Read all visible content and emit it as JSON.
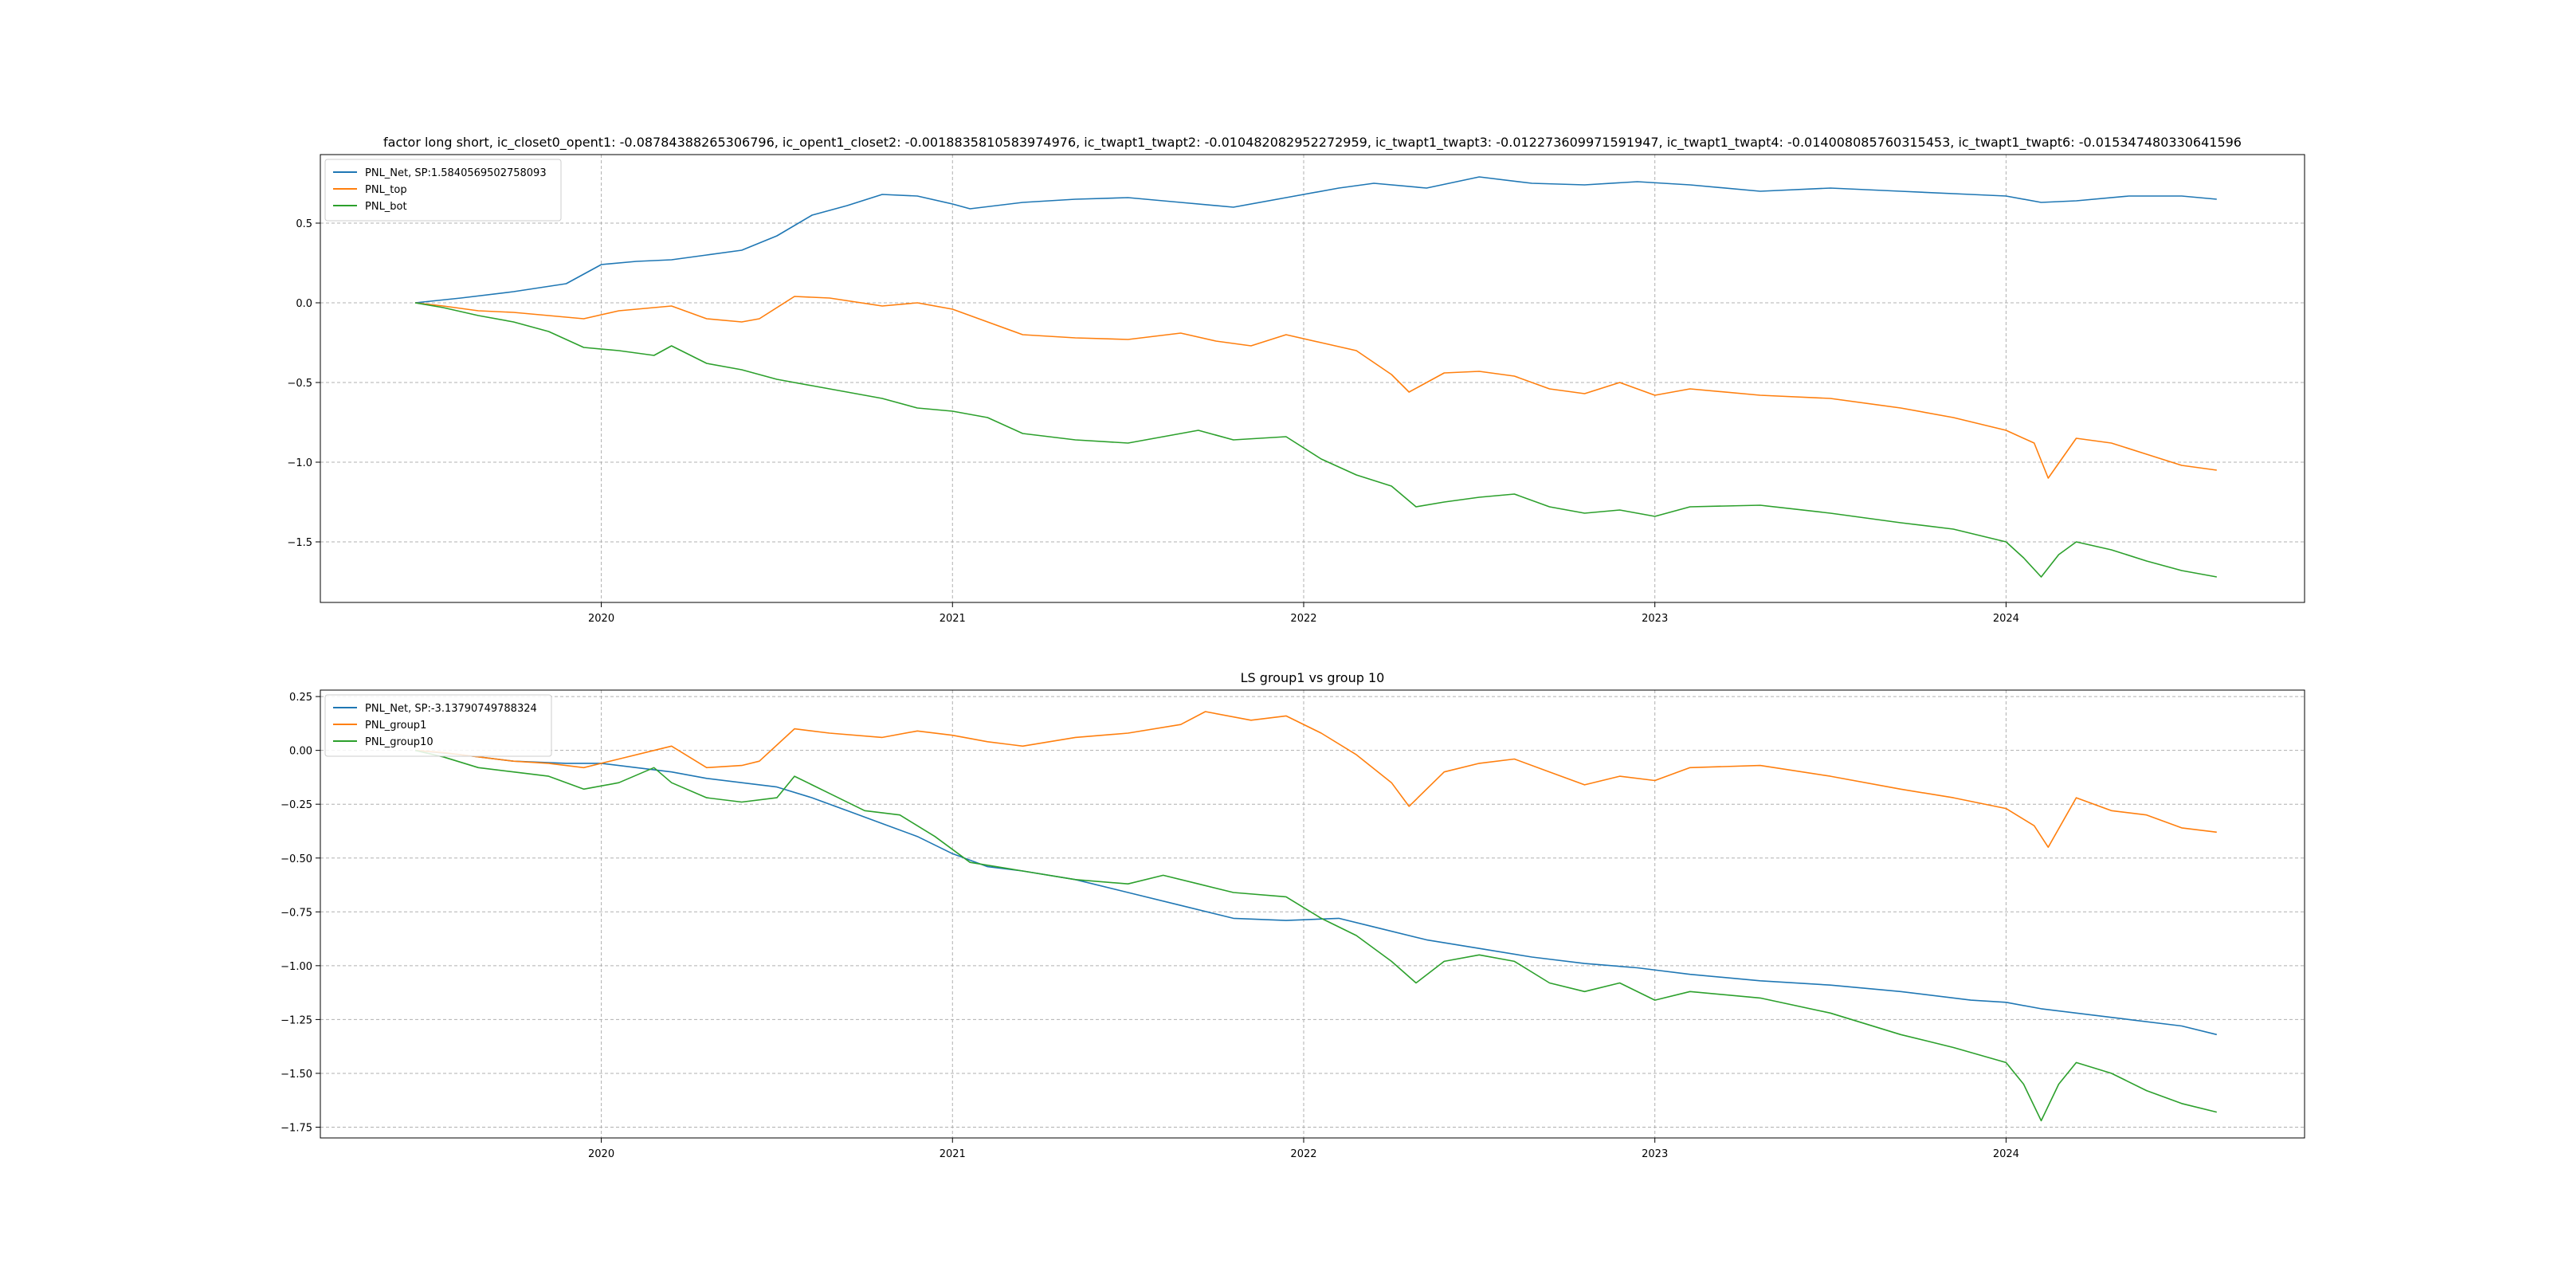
{
  "chart_data": [
    {
      "type": "line",
      "title": "factor long short, ic_closet0_opent1: -0.08784388265306796, ic_opent1_closet2: -0.0018835810583974976, ic_twapt1_twapt2: -0.010482082952272959, ic_twapt1_twapt3: -0.012273609971591947, ic_twapt1_twapt4: -0.014008085760315453, ic_twapt1_twapt6: -0.015347480330641596",
      "xlabel": "",
      "ylabel": "",
      "xlim": [
        2019.2,
        2024.85
      ],
      "ylim": [
        -1.88,
        0.93
      ],
      "grid": true,
      "legend": "upper left",
      "x_ticks": [
        {
          "value": 2020,
          "label": "2020"
        },
        {
          "value": 2021,
          "label": "2021"
        },
        {
          "value": 2022,
          "label": "2022"
        },
        {
          "value": 2023,
          "label": "2023"
        },
        {
          "value": 2024,
          "label": "2024"
        }
      ],
      "y_ticks": [
        {
          "value": 0.5,
          "label": "0.5"
        },
        {
          "value": 0.0,
          "label": "0.0"
        },
        {
          "value": -0.5,
          "label": "−0.5"
        },
        {
          "value": -1.0,
          "label": "−1.0"
        },
        {
          "value": -1.5,
          "label": "−1.5"
        }
      ],
      "series": [
        {
          "name": "PNL_Net, SP:1.5840569502758093",
          "color": "#1f77b4",
          "x": [
            2019.47,
            2019.6,
            2019.75,
            2019.9,
            2020.0,
            2020.1,
            2020.2,
            2020.3,
            2020.4,
            2020.5,
            2020.6,
            2020.7,
            2020.8,
            2020.9,
            2021.0,
            2021.05,
            2021.2,
            2021.35,
            2021.5,
            2021.65,
            2021.8,
            2021.95,
            2022.1,
            2022.2,
            2022.35,
            2022.5,
            2022.65,
            2022.8,
            2022.95,
            2023.1,
            2023.3,
            2023.5,
            2023.7,
            2023.9,
            2024.0,
            2024.1,
            2024.2,
            2024.35,
            2024.5,
            2024.6
          ],
          "y": [
            0.0,
            0.03,
            0.07,
            0.12,
            0.24,
            0.26,
            0.27,
            0.3,
            0.33,
            0.42,
            0.55,
            0.61,
            0.68,
            0.67,
            0.62,
            0.59,
            0.63,
            0.65,
            0.66,
            0.63,
            0.6,
            0.66,
            0.72,
            0.75,
            0.72,
            0.79,
            0.75,
            0.74,
            0.76,
            0.74,
            0.7,
            0.72,
            0.7,
            0.68,
            0.67,
            0.63,
            0.64,
            0.67,
            0.67,
            0.65
          ]
        },
        {
          "name": "PNL_top",
          "color": "#ff7f0e",
          "x": [
            2019.47,
            2019.55,
            2019.65,
            2019.75,
            2019.85,
            2019.95,
            2020.05,
            2020.15,
            2020.2,
            2020.3,
            2020.4,
            2020.45,
            2020.55,
            2020.65,
            2020.8,
            2020.9,
            2021.0,
            2021.1,
            2021.2,
            2021.35,
            2021.5,
            2021.65,
            2021.75,
            2021.85,
            2021.95,
            2022.05,
            2022.15,
            2022.25,
            2022.3,
            2022.4,
            2022.5,
            2022.6,
            2022.7,
            2022.8,
            2022.9,
            2023.0,
            2023.1,
            2023.3,
            2023.5,
            2023.7,
            2023.85,
            2024.0,
            2024.08,
            2024.12,
            2024.2,
            2024.3,
            2024.4,
            2024.5,
            2024.6
          ],
          "y": [
            0.0,
            -0.02,
            -0.05,
            -0.06,
            -0.08,
            -0.1,
            -0.05,
            -0.03,
            -0.02,
            -0.1,
            -0.12,
            -0.1,
            0.04,
            0.03,
            -0.02,
            0.0,
            -0.04,
            -0.12,
            -0.2,
            -0.22,
            -0.23,
            -0.19,
            -0.24,
            -0.27,
            -0.2,
            -0.25,
            -0.3,
            -0.45,
            -0.56,
            -0.44,
            -0.43,
            -0.46,
            -0.54,
            -0.57,
            -0.5,
            -0.58,
            -0.54,
            -0.58,
            -0.6,
            -0.66,
            -0.72,
            -0.8,
            -0.88,
            -1.1,
            -0.85,
            -0.88,
            -0.95,
            -1.02,
            -1.05
          ]
        },
        {
          "name": "PNL_bot",
          "color": "#2ca02c",
          "x": [
            2019.47,
            2019.55,
            2019.65,
            2019.75,
            2019.85,
            2019.95,
            2020.05,
            2020.15,
            2020.2,
            2020.3,
            2020.4,
            2020.5,
            2020.6,
            2020.7,
            2020.8,
            2020.9,
            2021.0,
            2021.1,
            2021.2,
            2021.35,
            2021.5,
            2021.6,
            2021.7,
            2021.8,
            2021.95,
            2022.05,
            2022.15,
            2022.25,
            2022.32,
            2022.4,
            2022.5,
            2022.6,
            2022.7,
            2022.8,
            2022.9,
            2023.0,
            2023.1,
            2023.3,
            2023.5,
            2023.7,
            2023.85,
            2024.0,
            2024.05,
            2024.1,
            2024.15,
            2024.2,
            2024.3,
            2024.4,
            2024.5,
            2024.6
          ],
          "y": [
            0.0,
            -0.03,
            -0.08,
            -0.12,
            -0.18,
            -0.28,
            -0.3,
            -0.33,
            -0.27,
            -0.38,
            -0.42,
            -0.48,
            -0.52,
            -0.56,
            -0.6,
            -0.66,
            -0.68,
            -0.72,
            -0.82,
            -0.86,
            -0.88,
            -0.84,
            -0.8,
            -0.86,
            -0.84,
            -0.98,
            -1.08,
            -1.15,
            -1.28,
            -1.25,
            -1.22,
            -1.2,
            -1.28,
            -1.32,
            -1.3,
            -1.34,
            -1.28,
            -1.27,
            -1.32,
            -1.38,
            -1.42,
            -1.5,
            -1.6,
            -1.72,
            -1.58,
            -1.5,
            -1.55,
            -1.62,
            -1.68,
            -1.72
          ]
        }
      ]
    },
    {
      "type": "line",
      "title": "LS group1 vs group 10",
      "xlabel": "",
      "ylabel": "",
      "xlim": [
        2019.2,
        2024.85
      ],
      "ylim": [
        -1.8,
        0.28
      ],
      "grid": true,
      "legend": "upper left",
      "x_ticks": [
        {
          "value": 2020,
          "label": "2020"
        },
        {
          "value": 2021,
          "label": "2021"
        },
        {
          "value": 2022,
          "label": "2022"
        },
        {
          "value": 2023,
          "label": "2023"
        },
        {
          "value": 2024,
          "label": "2024"
        }
      ],
      "y_ticks": [
        {
          "value": 0.25,
          "label": "0.25"
        },
        {
          "value": 0.0,
          "label": "0.00"
        },
        {
          "value": -0.25,
          "label": "−0.25"
        },
        {
          "value": -0.5,
          "label": "−0.50"
        },
        {
          "value": -0.75,
          "label": "−0.75"
        },
        {
          "value": -1.0,
          "label": "−1.00"
        },
        {
          "value": -1.25,
          "label": "−1.25"
        },
        {
          "value": -1.5,
          "label": "−1.50"
        },
        {
          "value": -1.75,
          "label": "−1.75"
        }
      ],
      "series": [
        {
          "name": "PNL_Net, SP:-3.13790749788324",
          "color": "#1f77b4",
          "x": [
            2019.47,
            2019.6,
            2019.75,
            2019.9,
            2020.0,
            2020.1,
            2020.2,
            2020.3,
            2020.4,
            2020.5,
            2020.6,
            2020.7,
            2020.8,
            2020.9,
            2021.0,
            2021.1,
            2021.2,
            2021.35,
            2021.5,
            2021.65,
            2021.8,
            2021.95,
            2022.1,
            2022.2,
            2022.35,
            2022.5,
            2022.65,
            2022.8,
            2022.95,
            2023.1,
            2023.3,
            2023.5,
            2023.7,
            2023.9,
            2024.0,
            2024.1,
            2024.2,
            2024.35,
            2024.5,
            2024.6
          ],
          "y": [
            0.0,
            -0.02,
            -0.05,
            -0.06,
            -0.06,
            -0.08,
            -0.1,
            -0.13,
            -0.15,
            -0.17,
            -0.22,
            -0.28,
            -0.34,
            -0.4,
            -0.48,
            -0.54,
            -0.56,
            -0.6,
            -0.66,
            -0.72,
            -0.78,
            -0.79,
            -0.78,
            -0.82,
            -0.88,
            -0.92,
            -0.96,
            -0.99,
            -1.01,
            -1.04,
            -1.07,
            -1.09,
            -1.12,
            -1.16,
            -1.17,
            -1.2,
            -1.22,
            -1.25,
            -1.28,
            -1.32
          ]
        },
        {
          "name": "PNL_group1",
          "color": "#ff7f0e",
          "x": [
            2019.47,
            2019.55,
            2019.65,
            2019.75,
            2019.85,
            2019.95,
            2020.05,
            2020.15,
            2020.2,
            2020.3,
            2020.4,
            2020.45,
            2020.55,
            2020.65,
            2020.8,
            2020.9,
            2021.0,
            2021.1,
            2021.2,
            2021.35,
            2021.5,
            2021.65,
            2021.72,
            2021.85,
            2021.95,
            2022.05,
            2022.15,
            2022.25,
            2022.3,
            2022.4,
            2022.5,
            2022.6,
            2022.7,
            2022.8,
            2022.9,
            2023.0,
            2023.1,
            2023.3,
            2023.5,
            2023.7,
            2023.85,
            2024.0,
            2024.08,
            2024.12,
            2024.2,
            2024.3,
            2024.4,
            2024.5,
            2024.6
          ],
          "y": [
            0.0,
            -0.01,
            -0.03,
            -0.05,
            -0.06,
            -0.08,
            -0.04,
            0.0,
            0.02,
            -0.08,
            -0.07,
            -0.05,
            0.1,
            0.08,
            0.06,
            0.09,
            0.07,
            0.04,
            0.02,
            0.06,
            0.08,
            0.12,
            0.18,
            0.14,
            0.16,
            0.08,
            -0.02,
            -0.15,
            -0.26,
            -0.1,
            -0.06,
            -0.04,
            -0.1,
            -0.16,
            -0.12,
            -0.14,
            -0.08,
            -0.07,
            -0.12,
            -0.18,
            -0.22,
            -0.27,
            -0.35,
            -0.45,
            -0.22,
            -0.28,
            -0.3,
            -0.36,
            -0.38
          ]
        },
        {
          "name": "PNL_group10",
          "color": "#2ca02c",
          "x": [
            2019.47,
            2019.55,
            2019.65,
            2019.75,
            2019.85,
            2019.95,
            2020.05,
            2020.15,
            2020.2,
            2020.3,
            2020.4,
            2020.5,
            2020.55,
            2020.65,
            2020.75,
            2020.85,
            2020.95,
            2021.05,
            2021.2,
            2021.35,
            2021.5,
            2021.6,
            2021.7,
            2021.8,
            2021.95,
            2022.05,
            2022.15,
            2022.25,
            2022.32,
            2022.4,
            2022.5,
            2022.6,
            2022.7,
            2022.8,
            2022.9,
            2023.0,
            2023.1,
            2023.3,
            2023.5,
            2023.7,
            2023.85,
            2024.0,
            2024.05,
            2024.1,
            2024.15,
            2024.2,
            2024.3,
            2024.4,
            2024.5,
            2024.6
          ],
          "y": [
            0.0,
            -0.03,
            -0.08,
            -0.1,
            -0.12,
            -0.18,
            -0.15,
            -0.08,
            -0.15,
            -0.22,
            -0.24,
            -0.22,
            -0.12,
            -0.2,
            -0.28,
            -0.3,
            -0.4,
            -0.52,
            -0.56,
            -0.6,
            -0.62,
            -0.58,
            -0.62,
            -0.66,
            -0.68,
            -0.78,
            -0.86,
            -0.98,
            -1.08,
            -0.98,
            -0.95,
            -0.98,
            -1.08,
            -1.12,
            -1.08,
            -1.16,
            -1.12,
            -1.15,
            -1.22,
            -1.32,
            -1.38,
            -1.45,
            -1.55,
            -1.72,
            -1.55,
            -1.45,
            -1.5,
            -1.58,
            -1.64,
            -1.68
          ]
        }
      ]
    }
  ]
}
